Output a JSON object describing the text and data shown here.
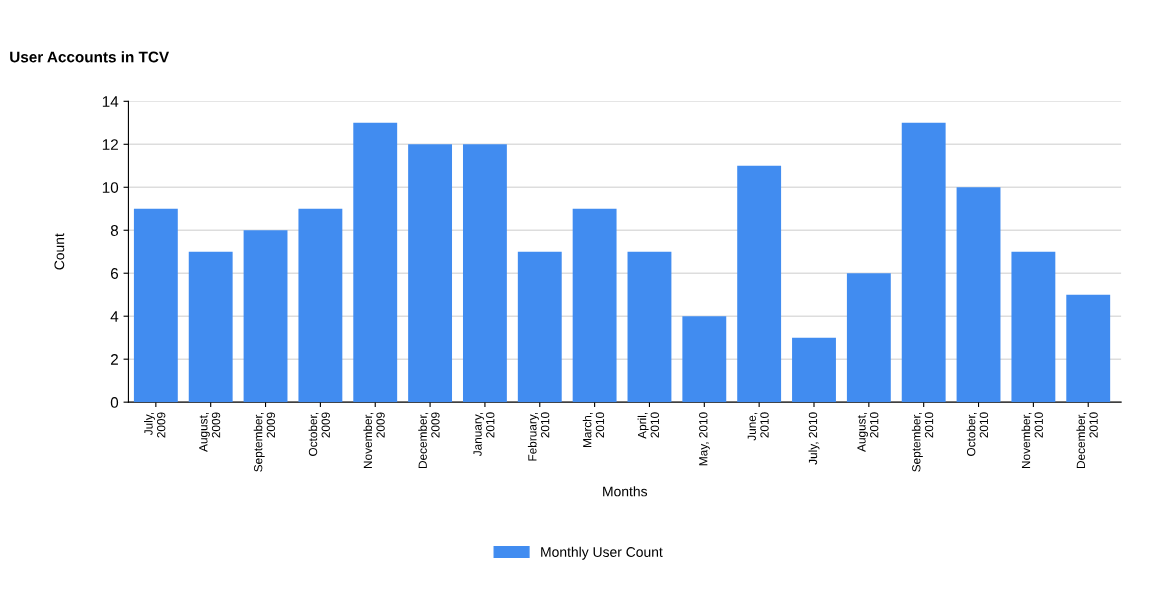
{
  "chart_data": {
    "type": "bar",
    "title": "User Accounts in TCV",
    "xlabel": "Months",
    "ylabel": "Count",
    "categories": [
      "July,\n2009",
      "August,\n2009",
      "September,\n2009",
      "October,\n2009",
      "November,\n2009",
      "December,\n2009",
      "January,\n2010",
      "February,\n2010",
      "March,\n2010",
      "April,\n2010",
      "May, 2010",
      "June,\n2010",
      "July, 2010",
      "August,\n2010",
      "September,\n2010",
      "October,\n2010",
      "November,\n2010",
      "December,\n2010"
    ],
    "series": [
      {
        "name": "Monthly User Count",
        "color": "#418cf0",
        "values": [
          9,
          7,
          8,
          9,
          13,
          12,
          12,
          7,
          9,
          7,
          4,
          11,
          3,
          6,
          13,
          10,
          7,
          5
        ]
      }
    ],
    "ylim": [
      0,
      14
    ],
    "yticks": [
      0,
      2,
      4,
      6,
      8,
      10,
      12,
      14
    ],
    "grid": "y",
    "legend": "bottom"
  }
}
